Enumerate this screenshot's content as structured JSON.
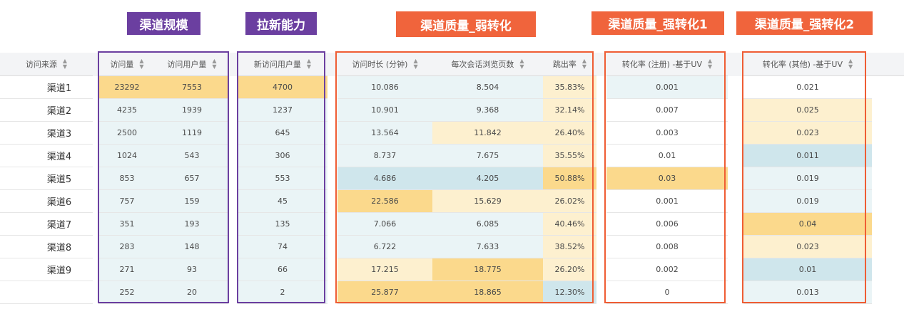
{
  "groups": {
    "scale": "渠道规模",
    "acquisition": "拉新能力",
    "weak": "渠道质量_弱转化",
    "strong1": "渠道质量_强转化1",
    "strong2": "渠道质量_强转化2"
  },
  "colors": {
    "purple": "#6b3fa0",
    "orange": "#f0643c",
    "heat_high": "#fbd98c",
    "heat_mid": "#fdf0cf",
    "heat_low": "#cfe6ec",
    "heat_neutral": "#eaf4f6"
  },
  "table": {
    "columns": {
      "source": "访问来源",
      "visits": "访问量",
      "users": "访问用户量",
      "new_users": "新访问用户量",
      "duration": "访问时长 (分钟)",
      "pages": "每次会话浏览页数",
      "bounce": "跳出率",
      "conv_reg": "转化率 (注册) -基于UV",
      "conv_other": "转化率 (其他) -基于UV"
    },
    "rows": [
      {
        "source": "渠道1",
        "visits": "23292",
        "users": "7553",
        "new_users": "4700",
        "duration": "10.086",
        "pages": "8.504",
        "bounce": "35.83%",
        "conv_reg": "0.001",
        "conv_other": "0.021"
      },
      {
        "source": "渠道2",
        "visits": "4235",
        "users": "1939",
        "new_users": "1237",
        "duration": "10.901",
        "pages": "9.368",
        "bounce": "32.14%",
        "conv_reg": "0.007",
        "conv_other": "0.025"
      },
      {
        "source": "渠道3",
        "visits": "2500",
        "users": "1119",
        "new_users": "645",
        "duration": "13.564",
        "pages": "11.842",
        "bounce": "26.40%",
        "conv_reg": "0.003",
        "conv_other": "0.023"
      },
      {
        "source": "渠道4",
        "visits": "1024",
        "users": "543",
        "new_users": "306",
        "duration": "8.737",
        "pages": "7.675",
        "bounce": "35.55%",
        "conv_reg": "0.01",
        "conv_other": "0.011"
      },
      {
        "source": "渠道5",
        "visits": "853",
        "users": "657",
        "new_users": "553",
        "duration": "4.686",
        "pages": "4.205",
        "bounce": "50.88%",
        "conv_reg": "0.03",
        "conv_other": "0.019"
      },
      {
        "source": "渠道6",
        "visits": "757",
        "users": "159",
        "new_users": "45",
        "duration": "22.586",
        "pages": "15.629",
        "bounce": "26.02%",
        "conv_reg": "0.001",
        "conv_other": "0.019"
      },
      {
        "source": "渠道7",
        "visits": "351",
        "users": "193",
        "new_users": "135",
        "duration": "7.066",
        "pages": "6.085",
        "bounce": "40.46%",
        "conv_reg": "0.006",
        "conv_other": "0.04"
      },
      {
        "source": "渠道8",
        "visits": "283",
        "users": "148",
        "new_users": "74",
        "duration": "6.722",
        "pages": "7.633",
        "bounce": "38.52%",
        "conv_reg": "0.008",
        "conv_other": "0.023"
      },
      {
        "source": "渠道9",
        "visits": "271",
        "users": "93",
        "new_users": "66",
        "duration": "17.215",
        "pages": "18.775",
        "bounce": "26.20%",
        "conv_reg": "0.002",
        "conv_other": "0.01"
      },
      {
        "source": "",
        "visits": "252",
        "users": "20",
        "new_users": "2",
        "duration": "25.877",
        "pages": "18.865",
        "bounce": "12.30%",
        "conv_reg": "0",
        "conv_other": "0.013"
      }
    ],
    "heat": [
      {
        "visits": "h",
        "users": "h",
        "new_users": "h",
        "duration": "n",
        "pages": "n",
        "bounce": "m",
        "conv_reg": "n",
        "conv_other": "w"
      },
      {
        "visits": "n",
        "users": "n",
        "new_users": "n",
        "duration": "n",
        "pages": "n",
        "bounce": "m",
        "conv_reg": "w",
        "conv_other": "m"
      },
      {
        "visits": "n",
        "users": "n",
        "new_users": "n",
        "duration": "n",
        "pages": "m",
        "bounce": "m",
        "conv_reg": "w",
        "conv_other": "m"
      },
      {
        "visits": "n",
        "users": "n",
        "new_users": "n",
        "duration": "n",
        "pages": "n",
        "bounce": "m",
        "conv_reg": "w",
        "conv_other": "l"
      },
      {
        "visits": "n",
        "users": "n",
        "new_users": "n",
        "duration": "l",
        "pages": "l",
        "bounce": "h",
        "conv_reg": "h",
        "conv_other": "n"
      },
      {
        "visits": "n",
        "users": "n",
        "new_users": "n",
        "duration": "h",
        "pages": "m",
        "bounce": "m",
        "conv_reg": "w",
        "conv_other": "n"
      },
      {
        "visits": "n",
        "users": "n",
        "new_users": "n",
        "duration": "n",
        "pages": "n",
        "bounce": "m",
        "conv_reg": "w",
        "conv_other": "h"
      },
      {
        "visits": "n",
        "users": "n",
        "new_users": "n",
        "duration": "n",
        "pages": "n",
        "bounce": "m",
        "conv_reg": "w",
        "conv_other": "m"
      },
      {
        "visits": "n",
        "users": "n",
        "new_users": "n",
        "duration": "m",
        "pages": "h",
        "bounce": "m",
        "conv_reg": "w",
        "conv_other": "l"
      },
      {
        "visits": "n",
        "users": "n",
        "new_users": "n",
        "duration": "h",
        "pages": "h",
        "bounce": "l",
        "conv_reg": "w",
        "conv_other": "n"
      }
    ]
  }
}
